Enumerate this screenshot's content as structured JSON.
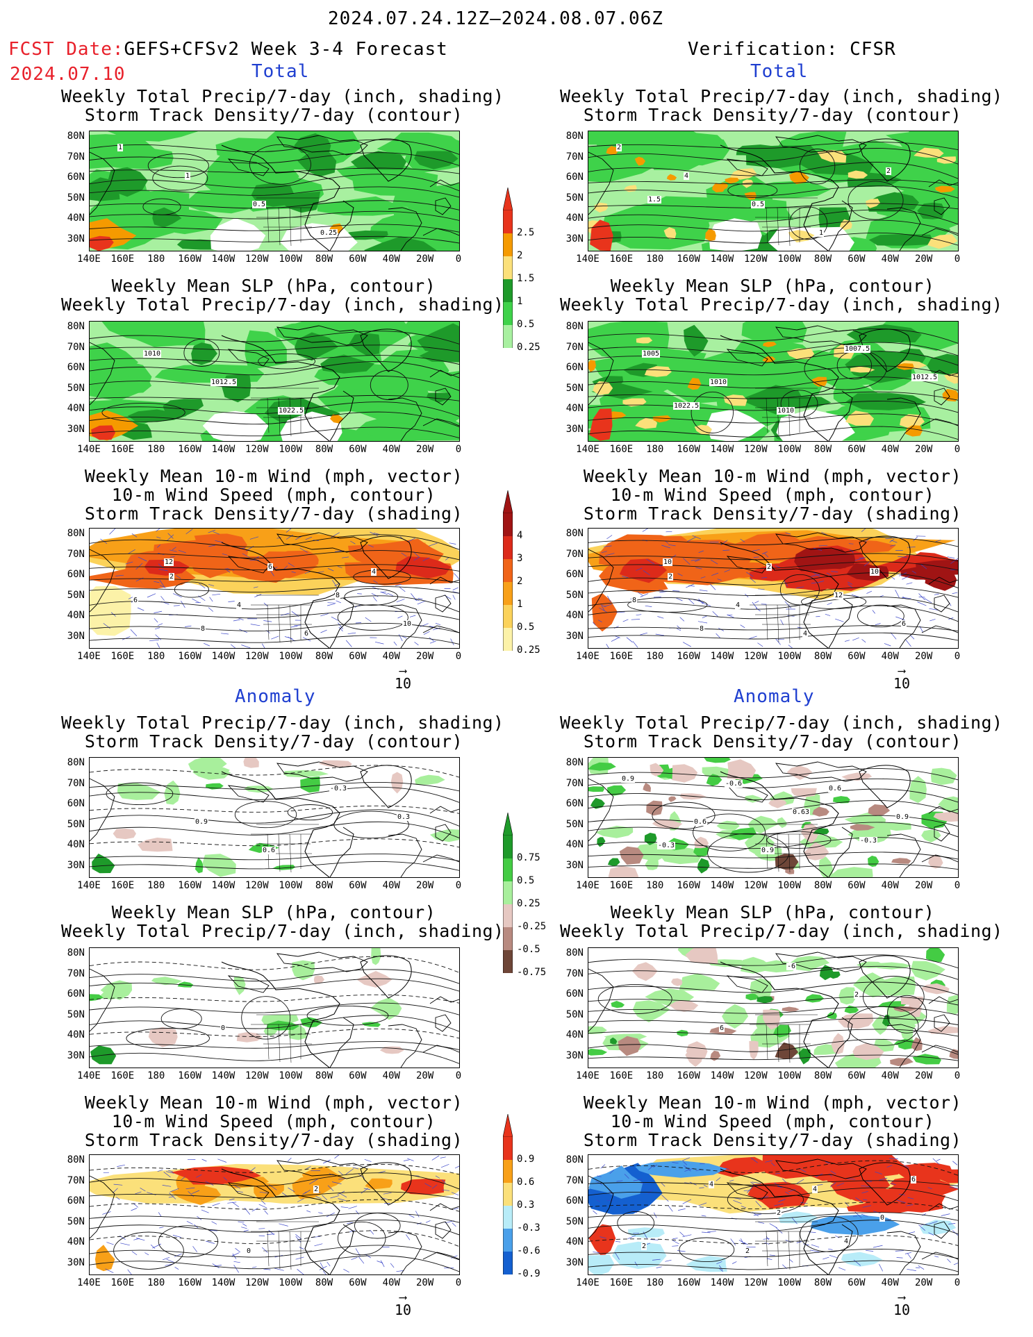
{
  "header": {
    "period": "2024.07.24.12Z–2024.08.07.06Z",
    "fcst_label": "FCST Date:",
    "fcst_title": "GEFS+CFSv2 Week 3-4 Forecast",
    "fcst_date": "2024.07.10",
    "verif_title": "Verification: CFSR"
  },
  "sections": {
    "total": "Total",
    "anomaly": "Anomaly"
  },
  "panel_titles": {
    "precip_storm": "Weekly Total Precip/7-day (inch, shading)\nStorm Track Density/7-day (contour)",
    "slp_precip": "Weekly Mean SLP (hPa, contour)\nWeekly Total Precip/7-day (inch, shading)",
    "wind_storm": "Weekly Mean 10-m Wind (mph, vector)\n10-m Wind Speed (mph, contour)\nStorm Track Density/7-day (shading)"
  },
  "lat_labels": [
    "80N",
    "70N",
    "60N",
    "50N",
    "40N",
    "30N"
  ],
  "lon_labels": [
    "140E",
    "160E",
    "180",
    "160W",
    "140W",
    "120W",
    "100W",
    "80W",
    "60W",
    "40W",
    "20W",
    "0"
  ],
  "vector_ref": "10",
  "colorbars": {
    "precip_total": {
      "labels": [
        "2.5",
        "2",
        "1.5",
        "1",
        "0.5",
        "0.25"
      ],
      "colors": [
        "#e8341c",
        "#f59a00",
        "#fbe07a",
        "#1e9a2a",
        "#3fd24a",
        "#a8f0a0"
      ]
    },
    "storm_total": {
      "labels": [
        "4",
        "3",
        "2",
        "1",
        "0.5",
        "0.25"
      ],
      "colors": [
        "#a01414",
        "#dc2a1a",
        "#f06418",
        "#f8a018",
        "#fbd25a",
        "#fcf2a8"
      ]
    },
    "precip_anom": {
      "labels": [
        "0.75",
        "0.5",
        "0.25",
        "-0.25",
        "-0.5",
        "-0.75"
      ],
      "colors": [
        "#1e9a2a",
        "#44cc44",
        "#a8ef9c",
        "#e6c8c2",
        "#b88a80",
        "#6e4638"
      ]
    },
    "storm_anom": {
      "labels": [
        "0.9",
        "0.6",
        "0.3",
        "-0.3",
        "-0.6",
        "-0.9"
      ],
      "colors": [
        "#e8341c",
        "#f8a018",
        "#fbe07a",
        "#b8ecf8",
        "#4aa0ea",
        "#1460d0"
      ]
    }
  },
  "contour_labels": {
    "fc_total_precip": [
      "1",
      "1",
      "0.5",
      "0.25"
    ],
    "ve_total_precip": [
      "2",
      "4",
      "0.5",
      "1",
      "2",
      "1.5"
    ],
    "fc_total_slp": [
      "1010",
      "1012.5",
      "1022.5"
    ],
    "ve_total_slp": [
      "1005",
      "1010",
      "1010",
      "1007.5",
      "1012.5",
      "1022.5"
    ],
    "fc_total_wind": [
      "2",
      "4",
      "6",
      "4",
      "6",
      "8",
      "6",
      "8",
      "10",
      "12"
    ],
    "ve_total_wind": [
      "2",
      "4",
      "4",
      "10",
      "8",
      "8",
      "2",
      "12",
      "6",
      "10"
    ],
    "fc_anom_precip": [
      "0.9",
      "0.6",
      "-0.3",
      "0.3"
    ],
    "ve_anom_precip": [
      "0.6",
      "0.9",
      "0.6",
      "0.9",
      "-0.3",
      "-0.6",
      "0.63",
      "-0.3",
      "0.9"
    ],
    "fc_anom_slp": [
      "0"
    ],
    "ve_anom_slp": [
      "6",
      "-6",
      "2"
    ],
    "fc_anom_wind": [
      "0",
      "2"
    ],
    "ve_anom_wind": [
      "2",
      "4",
      "0",
      "2",
      "4",
      "2",
      "4",
      "6"
    ]
  }
}
